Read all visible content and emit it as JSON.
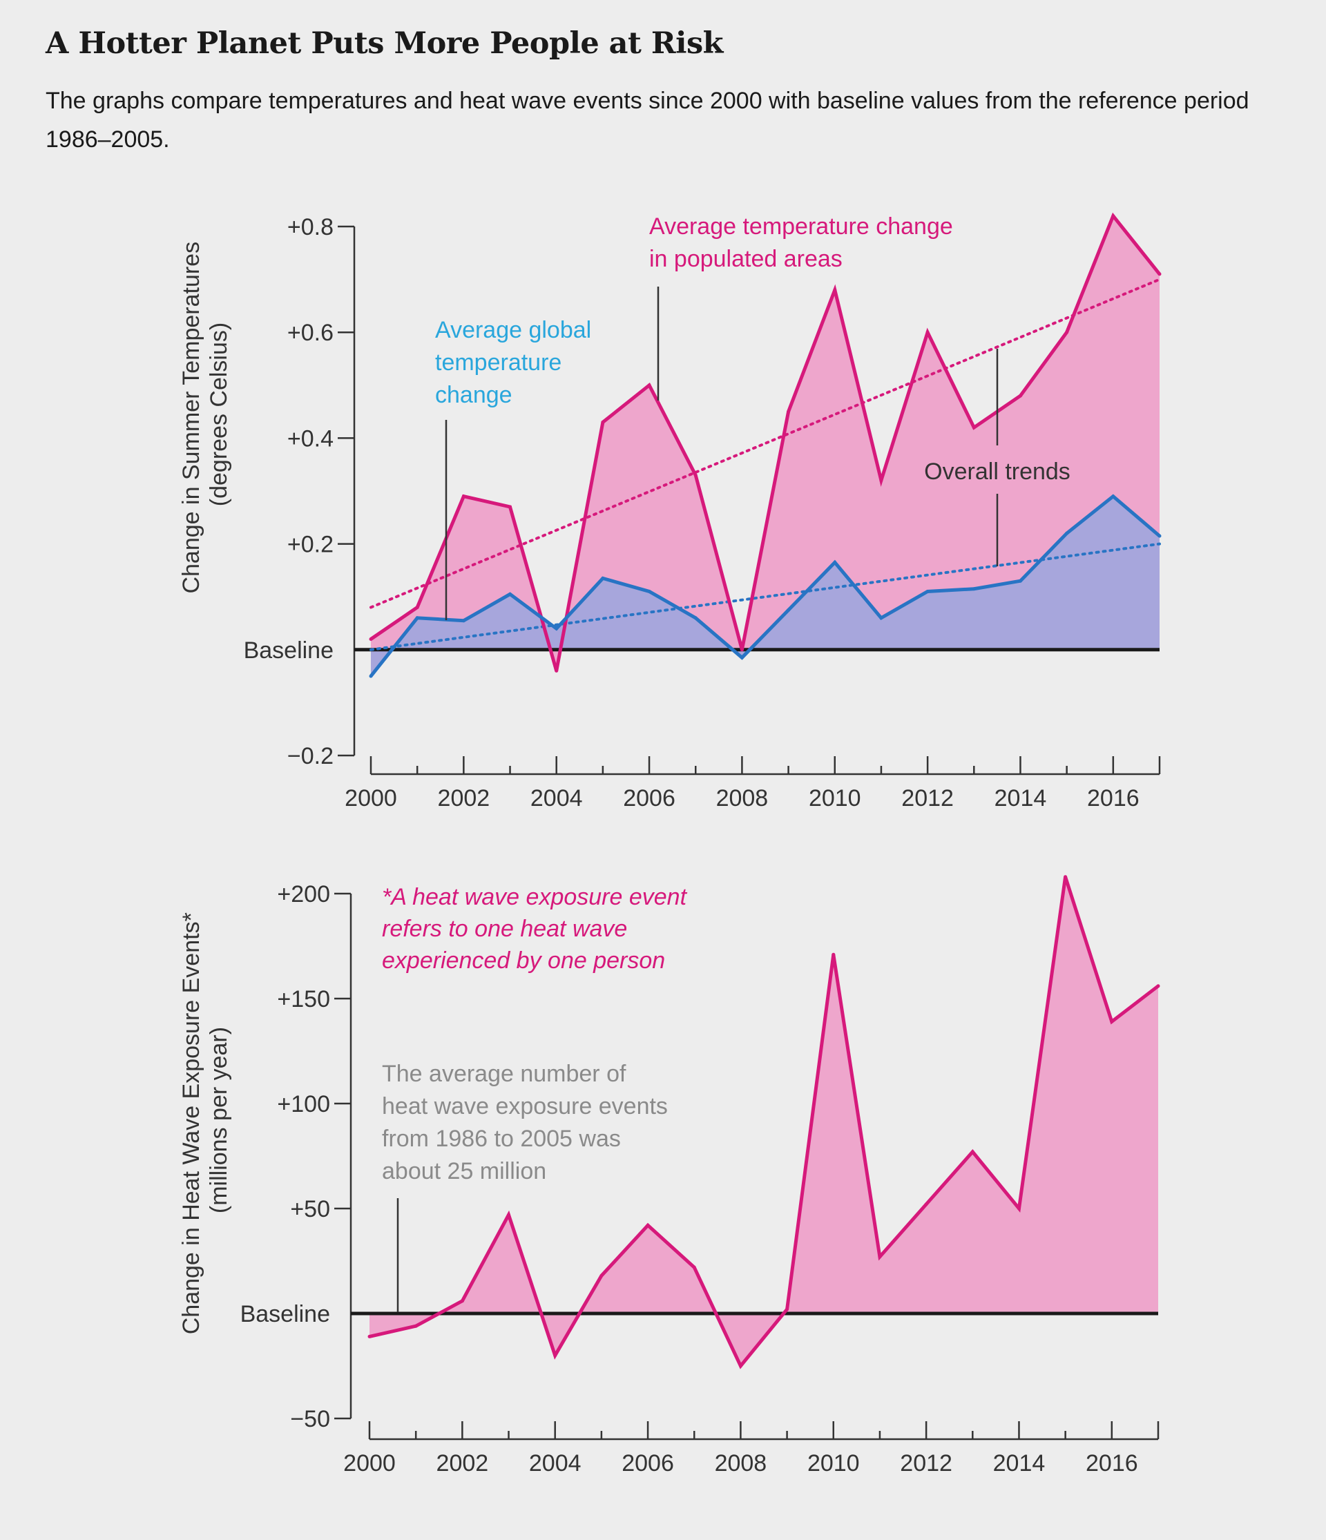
{
  "title": "A Hotter Planet Puts More People at Risk",
  "subtitle": "The graphs compare temperatures and heat wave events since 2000 with baseline values from the reference period 1986–2005.",
  "colors": {
    "magenta": "#d6197b",
    "magenta_fill": "#eea6cc",
    "blue": "#2874c4",
    "blue_label": "#29a6dc",
    "blue_fill": "#a7a6dc",
    "baseline": "#1a1a1a",
    "note_gray": "#8a8a8a"
  },
  "chart_data": [
    {
      "type": "area",
      "ylabel": [
        "Change in Summer Temperatures",
        "(degrees Celsius)"
      ],
      "xlim": [
        2000,
        2017
      ],
      "ylim": [
        -0.2,
        0.8
      ],
      "xticks": [
        2000,
        2002,
        2004,
        2006,
        2008,
        2010,
        2012,
        2014,
        2016
      ],
      "xtick_labels": [
        "2000",
        "2002",
        "2004",
        "2006",
        "2008",
        "2010",
        "2012",
        "2014",
        "2016"
      ],
      "yticks": [
        -0.2,
        0,
        0.2,
        0.4,
        0.6,
        0.8
      ],
      "ytick_labels": [
        "−0.2",
        "Baseline",
        "+0.2",
        "+0.4",
        "+0.6",
        "+0.8"
      ],
      "x": [
        2000,
        2001,
        2002,
        2003,
        2004,
        2005,
        2006,
        2007,
        2008,
        2009,
        2010,
        2011,
        2012,
        2013,
        2014,
        2015,
        2016,
        2017
      ],
      "series": [
        {
          "name": "Average temperature change in populated areas",
          "label_lines": [
            "Average temperature change",
            "in populated areas"
          ],
          "color": "#d6197b",
          "values": [
            0.02,
            0.08,
            0.29,
            0.27,
            -0.04,
            0.43,
            0.5,
            0.33,
            0.0,
            0.45,
            0.68,
            0.32,
            0.6,
            0.42,
            0.48,
            0.6,
            0.82,
            0.71
          ],
          "trend": [
            0.08,
            0.7
          ]
        },
        {
          "name": "Average global temperature change",
          "label_lines": [
            "Average global",
            "temperature",
            "change"
          ],
          "color": "#2874c4",
          "values": [
            -0.05,
            0.06,
            0.055,
            0.105,
            0.04,
            0.135,
            0.11,
            0.06,
            -0.015,
            0.075,
            0.165,
            0.06,
            0.11,
            0.115,
            0.13,
            0.22,
            0.29,
            0.215
          ],
          "trend": [
            0.0,
            0.2
          ]
        }
      ],
      "annotations": [
        "Overall trends"
      ]
    },
    {
      "type": "area",
      "ylabel": [
        "Change in Heat Wave Exposure Events*",
        "(millions per year)"
      ],
      "xlim": [
        2000,
        2017
      ],
      "ylim": [
        -50,
        200
      ],
      "xticks": [
        2000,
        2002,
        2004,
        2006,
        2008,
        2010,
        2012,
        2014,
        2016
      ],
      "xtick_labels": [
        "2000",
        "2002",
        "2004",
        "2006",
        "2008",
        "2010",
        "2012",
        "2014",
        "2016"
      ],
      "yticks": [
        -50,
        0,
        50,
        100,
        150,
        200
      ],
      "ytick_labels": [
        "−50",
        "Baseline",
        "+50",
        "+100",
        "+150",
        "+200"
      ],
      "x": [
        2000,
        2001,
        2002,
        2003,
        2004,
        2005,
        2006,
        2007,
        2008,
        2009,
        2010,
        2011,
        2012,
        2013,
        2014,
        2015,
        2016,
        2017
      ],
      "series": [
        {
          "name": "Change in heat wave exposure events",
          "color": "#d6197b",
          "values": [
            -11,
            -6,
            6,
            47,
            -20,
            18,
            42,
            22,
            -25,
            2,
            171,
            27,
            52,
            77,
            50,
            208,
            139,
            156
          ]
        }
      ],
      "annotations": [
        [
          "*A heat wave exposure event",
          "refers to one heat wave",
          "experienced by one person"
        ],
        [
          "The average number of",
          "heat wave exposure events",
          "from 1986 to 2005 was",
          "about 25 million"
        ]
      ]
    }
  ]
}
